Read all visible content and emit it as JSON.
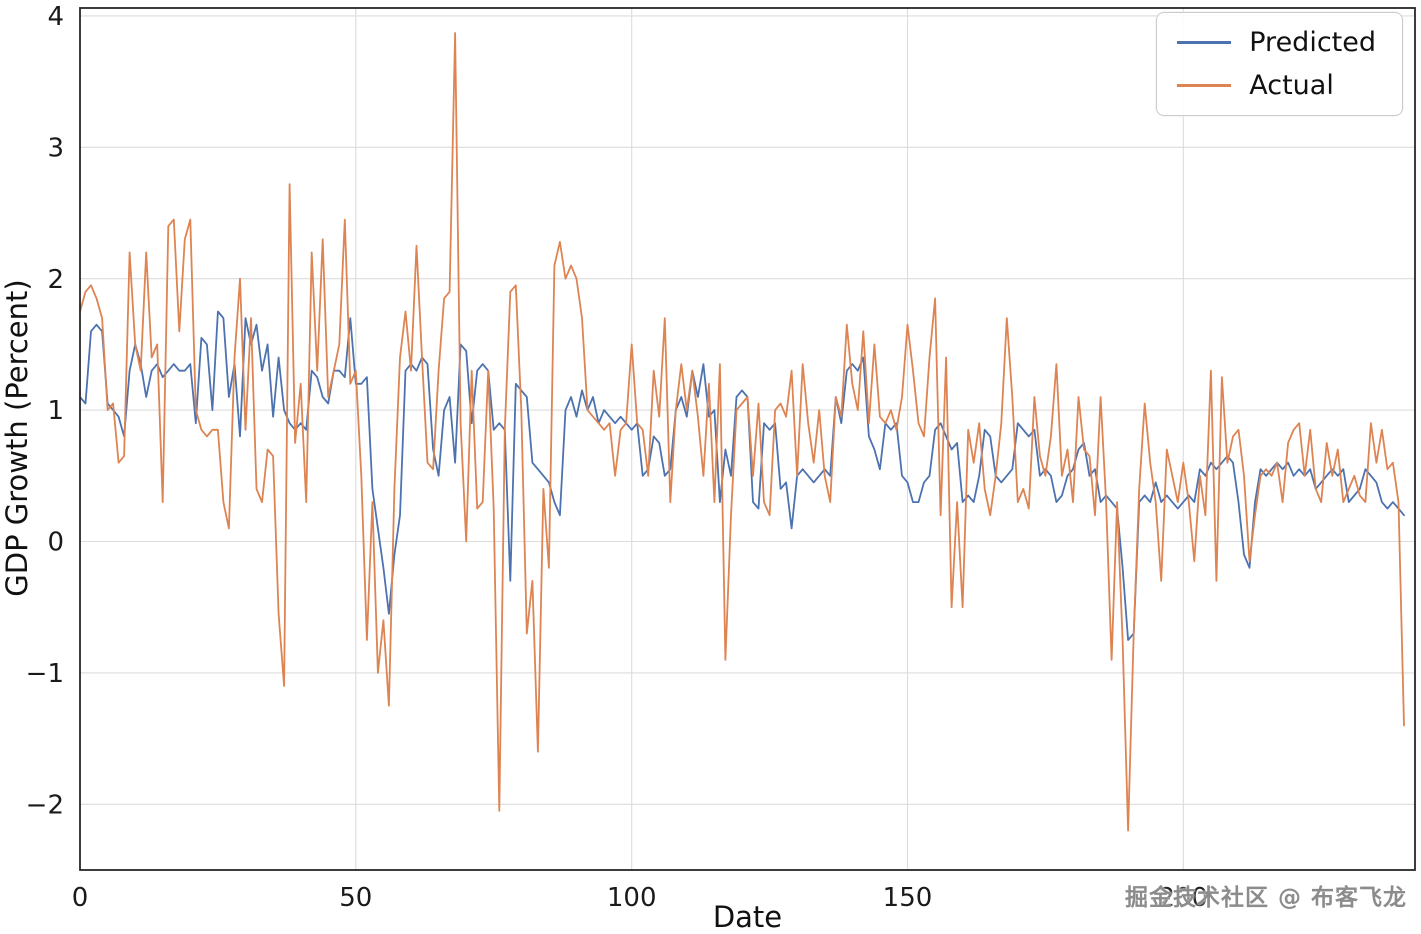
{
  "watermark": "掘金技术社区 @ 布客飞龙",
  "chart_data": {
    "type": "line",
    "title": "",
    "xlabel": "Date",
    "ylabel": "GDP Growth (Percent)",
    "xlim": [
      0,
      242
    ],
    "ylim": [
      -2.5,
      4.06
    ],
    "x_ticks": [
      0,
      50,
      100,
      150,
      200
    ],
    "y_ticks": [
      -2,
      -1,
      0,
      1,
      2,
      3,
      4
    ],
    "grid": true,
    "legend_position": "upper right",
    "x_start": 0,
    "x_step": 1,
    "series": [
      {
        "name": "Predicted",
        "color": "#4c72b0",
        "values": [
          1.1,
          1.05,
          1.6,
          1.65,
          1.6,
          1.05,
          1.0,
          0.95,
          0.8,
          1.3,
          1.5,
          1.35,
          1.1,
          1.3,
          1.35,
          1.25,
          1.3,
          1.35,
          1.3,
          1.3,
          1.35,
          0.9,
          1.55,
          1.5,
          1.0,
          1.75,
          1.7,
          1.1,
          1.35,
          0.8,
          1.7,
          1.5,
          1.65,
          1.3,
          1.5,
          0.95,
          1.4,
          1.0,
          0.9,
          0.85,
          0.9,
          0.85,
          1.3,
          1.25,
          1.1,
          1.05,
          1.3,
          1.3,
          1.25,
          1.7,
          1.2,
          1.2,
          1.25,
          0.4,
          0.1,
          -0.2,
          -0.55,
          -0.1,
          0.2,
          1.3,
          1.35,
          1.3,
          1.4,
          1.35,
          0.7,
          0.5,
          1.0,
          1.1,
          0.6,
          1.5,
          1.45,
          0.9,
          1.3,
          1.35,
          1.3,
          0.85,
          0.9,
          0.85,
          -0.3,
          1.2,
          1.15,
          1.1,
          0.6,
          0.55,
          0.5,
          0.45,
          0.3,
          0.2,
          1.0,
          1.1,
          0.95,
          1.15,
          1.0,
          1.1,
          0.9,
          1.0,
          0.95,
          0.9,
          0.95,
          0.9,
          0.85,
          0.9,
          0.5,
          0.55,
          0.8,
          0.75,
          0.5,
          0.55,
          1.0,
          1.1,
          0.95,
          1.3,
          1.1,
          1.35,
          0.95,
          1.0,
          0.3,
          0.7,
          0.5,
          1.1,
          1.15,
          1.1,
          0.3,
          0.25,
          0.9,
          0.85,
          0.9,
          0.4,
          0.45,
          0.1,
          0.5,
          0.55,
          0.5,
          0.45,
          0.5,
          0.55,
          0.5,
          1.1,
          0.9,
          1.3,
          1.35,
          1.3,
          1.4,
          0.8,
          0.7,
          0.55,
          0.9,
          0.85,
          0.9,
          0.5,
          0.45,
          0.3,
          0.3,
          0.45,
          0.5,
          0.85,
          0.9,
          0.8,
          0.7,
          0.75,
          0.3,
          0.35,
          0.3,
          0.5,
          0.85,
          0.8,
          0.5,
          0.45,
          0.5,
          0.55,
          0.9,
          0.85,
          0.8,
          0.85,
          0.5,
          0.55,
          0.5,
          0.3,
          0.35,
          0.5,
          0.55,
          0.7,
          0.75,
          0.5,
          0.55,
          0.3,
          0.35,
          0.3,
          0.25,
          -0.2,
          -0.75,
          -0.7,
          0.3,
          0.35,
          0.3,
          0.45,
          0.3,
          0.35,
          0.3,
          0.25,
          0.3,
          0.35,
          0.3,
          0.55,
          0.5,
          0.6,
          0.55,
          0.6,
          0.65,
          0.6,
          0.3,
          -0.1,
          -0.2,
          0.3,
          0.55,
          0.5,
          0.55,
          0.6,
          0.55,
          0.6,
          0.5,
          0.55,
          0.5,
          0.55,
          0.4,
          0.45,
          0.5,
          0.55,
          0.5,
          0.55,
          0.3,
          0.35,
          0.4,
          0.55,
          0.5,
          0.45,
          0.3,
          0.25,
          0.3,
          0.25,
          0.2
        ]
      },
      {
        "name": "Actual",
        "color": "#dd8452",
        "values": [
          1.75,
          1.9,
          1.95,
          1.85,
          1.7,
          1.0,
          1.05,
          0.6,
          0.65,
          2.2,
          1.5,
          1.3,
          2.2,
          1.4,
          1.5,
          0.3,
          2.4,
          2.45,
          1.6,
          2.3,
          2.45,
          1.0,
          0.85,
          0.8,
          0.85,
          0.85,
          0.3,
          0.1,
          1.4,
          2.0,
          0.85,
          1.7,
          0.4,
          0.3,
          0.7,
          0.65,
          -0.55,
          -1.1,
          2.72,
          0.75,
          1.2,
          0.3,
          2.2,
          1.3,
          2.3,
          1.1,
          1.3,
          1.5,
          2.45,
          1.2,
          1.3,
          0.5,
          -0.75,
          0.3,
          -1.0,
          -0.6,
          -1.25,
          0.4,
          1.4,
          1.75,
          1.3,
          2.25,
          1.4,
          0.6,
          0.55,
          1.3,
          1.85,
          1.9,
          3.87,
          0.9,
          0.0,
          1.3,
          0.25,
          0.3,
          1.3,
          0.25,
          -2.05,
          0.85,
          1.9,
          1.95,
          1.0,
          -0.7,
          -0.3,
          -1.6,
          0.4,
          -0.2,
          2.1,
          2.28,
          2.0,
          2.1,
          2.0,
          1.7,
          1.0,
          0.95,
          0.9,
          0.85,
          0.9,
          0.5,
          0.85,
          0.9,
          1.5,
          0.9,
          0.85,
          0.5,
          1.3,
          0.95,
          1.7,
          0.3,
          1.0,
          1.35,
          1.0,
          1.3,
          0.95,
          0.5,
          1.2,
          0.3,
          1.35,
          -0.9,
          0.2,
          1.0,
          1.05,
          1.1,
          0.5,
          1.05,
          0.3,
          0.2,
          1.0,
          1.05,
          0.95,
          1.3,
          0.5,
          1.35,
          0.9,
          0.6,
          1.0,
          0.5,
          0.3,
          1.1,
          0.95,
          1.65,
          1.2,
          1.0,
          1.6,
          0.9,
          1.5,
          0.95,
          0.9,
          1.0,
          0.85,
          1.1,
          1.65,
          1.3,
          0.9,
          0.8,
          1.4,
          1.85,
          0.2,
          1.4,
          -0.5,
          0.3,
          -0.5,
          0.85,
          0.6,
          0.9,
          0.4,
          0.2,
          0.5,
          0.9,
          1.7,
          1.1,
          0.3,
          0.4,
          0.25,
          1.1,
          0.65,
          0.5,
          0.8,
          1.35,
          0.5,
          0.7,
          0.3,
          1.1,
          0.7,
          0.65,
          0.2,
          1.1,
          0.3,
          -0.9,
          0.3,
          -0.75,
          -2.2,
          -0.7,
          0.4,
          1.05,
          0.6,
          0.3,
          -0.3,
          0.7,
          0.5,
          0.3,
          0.6,
          0.3,
          -0.15,
          0.5,
          0.2,
          1.3,
          -0.3,
          1.25,
          0.6,
          0.8,
          0.85,
          0.5,
          -0.15,
          0.2,
          0.5,
          0.55,
          0.5,
          0.6,
          0.3,
          0.75,
          0.85,
          0.9,
          0.5,
          0.85,
          0.4,
          0.3,
          0.75,
          0.5,
          0.7,
          0.3,
          0.4,
          0.5,
          0.35,
          0.3,
          0.9,
          0.6,
          0.85,
          0.55,
          0.6,
          0.3,
          -1.4
        ]
      }
    ]
  }
}
